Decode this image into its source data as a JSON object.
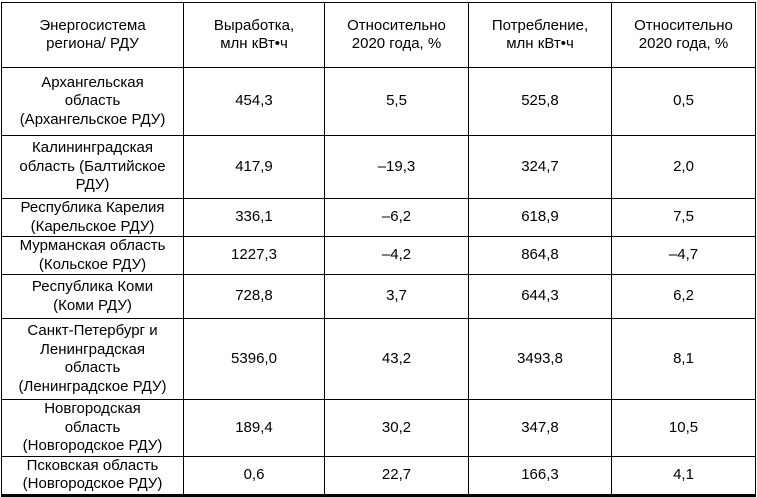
{
  "page": {
    "background_color": "#ffffff",
    "text_color": "#000000",
    "border_color": "#000000"
  },
  "table": {
    "columns": [
      "Энергосистема\nрегиона/ РДУ",
      "Выработка,\nмлн кВт•ч",
      "Относительно\n2020 года, %",
      "Потребление,\nмлн кВт•ч",
      "Относительно\n2020 года, %"
    ],
    "rows": [
      {
        "region": "Архангельская\nобласть\n(Архангельское РДУ)",
        "generation": "454,3",
        "generation_vs_2020": "5,5",
        "consumption": "525,8",
        "consumption_vs_2020": "0,5"
      },
      {
        "region": "Калининградская\nобласть (Балтийское\nРДУ)",
        "generation": "417,9",
        "generation_vs_2020": "–19,3",
        "consumption": "324,7",
        "consumption_vs_2020": "2,0"
      },
      {
        "region": "Республика Карелия\n(Карельское РДУ)",
        "generation": "336,1",
        "generation_vs_2020": "–6,2",
        "consumption": "618,9",
        "consumption_vs_2020": "7,5"
      },
      {
        "region": "Мурманская область\n(Кольское РДУ)",
        "generation": "1227,3",
        "generation_vs_2020": "–4,2",
        "consumption": "864,8",
        "consumption_vs_2020": "–4,7"
      },
      {
        "region": "Республика Коми\n(Коми РДУ)",
        "generation": "728,8",
        "generation_vs_2020": "3,7",
        "consumption": "644,3",
        "consumption_vs_2020": "6,2"
      },
      {
        "region": "Санкт-Петербург и\nЛенинградская\nобласть\n(Ленинградское РДУ)",
        "generation": "5396,0",
        "generation_vs_2020": "43,2",
        "consumption": "3493,8",
        "consumption_vs_2020": "8,1"
      },
      {
        "region": "Новгородская\nобласть\n(Новгородское РДУ)",
        "generation": "189,4",
        "generation_vs_2020": "30,2",
        "consumption": "347,8",
        "consumption_vs_2020": "10,5"
      },
      {
        "region": "Псковская область\n(Новгородское РДУ)",
        "generation": "0,6",
        "generation_vs_2020": "22,7",
        "consumption": "166,3",
        "consumption_vs_2020": "4,1"
      }
    ]
  }
}
